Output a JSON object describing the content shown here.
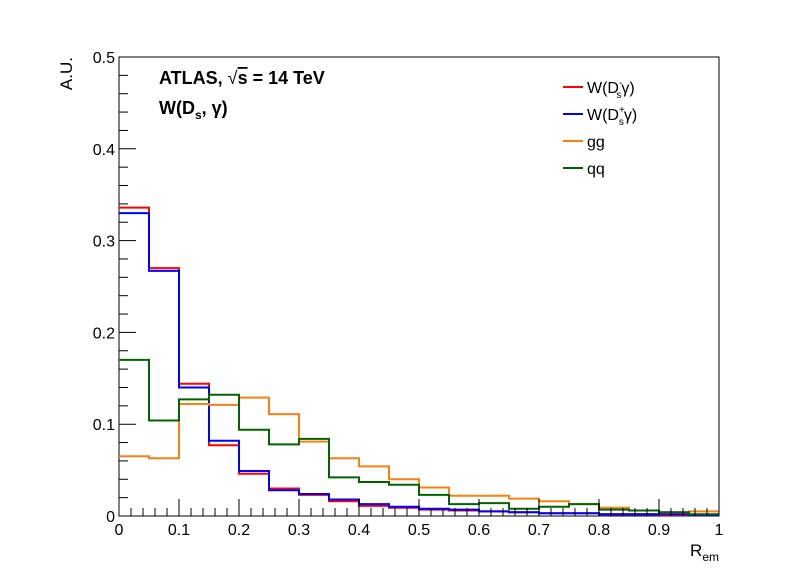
{
  "chart_data": {
    "type": "line",
    "style": "step-histogram",
    "x_bin_edges": [
      0,
      0.05,
      0.1,
      0.15,
      0.2,
      0.25,
      0.3,
      0.35,
      0.4,
      0.45,
      0.5,
      0.55,
      0.6,
      0.65,
      0.7,
      0.75,
      0.8,
      0.85,
      0.9,
      0.95,
      1.0
    ],
    "xlabel": "R",
    "xlabel_sub": "em",
    "ylabel": "A.U.",
    "xlim": [
      0,
      1
    ],
    "ylim": [
      0,
      0.5
    ],
    "x_ticks": [
      "0",
      "0.1",
      "0.2",
      "0.3",
      "0.4",
      "0.5",
      "0.6",
      "0.7",
      "0.8",
      "0.9",
      "1"
    ],
    "y_ticks": [
      "0",
      "0.1",
      "0.2",
      "0.3",
      "0.4",
      "0.5"
    ],
    "grid": false,
    "legend_position": "top-right",
    "annotation": {
      "line1_prefix": "ATLAS,",
      "line1_sqrt": "√",
      "line1_s": "s",
      "line1_suffix": "= 14 TeV",
      "line2_main": "W(D",
      "line2_sub": "s",
      "line2_end": ", γ)"
    },
    "series": [
      {
        "name": "W(D⁻ₛγ)",
        "legend_base": "W(D",
        "legend_sup": "-",
        "legend_sub": "s",
        "legend_end": "γ)",
        "color": "#ff0000",
        "values": [
          0.336,
          0.27,
          0.144,
          0.077,
          0.046,
          0.03,
          0.023,
          0.016,
          0.011,
          0.009,
          0.007,
          0.006,
          0.005,
          0.004,
          0.003,
          0.003,
          0.002,
          0.002,
          0.001,
          0.001
        ]
      },
      {
        "name": "W(D⁺ₛγ)",
        "legend_base": "W(D",
        "legend_sup": "+",
        "legend_sub": "s",
        "legend_end": "γ)",
        "color": "#0000ff",
        "values": [
          0.33,
          0.267,
          0.14,
          0.082,
          0.049,
          0.028,
          0.024,
          0.018,
          0.013,
          0.01,
          0.008,
          0.007,
          0.005,
          0.004,
          0.003,
          0.003,
          0.002,
          0.002,
          0.002,
          0.001
        ]
      },
      {
        "name": "gg",
        "legend_base": "gg",
        "legend_sup": "",
        "legend_sub": "",
        "legend_end": "",
        "color": "#ff7f0e",
        "values": [
          0.065,
          0.063,
          0.122,
          0.121,
          0.129,
          0.111,
          0.081,
          0.063,
          0.054,
          0.04,
          0.031,
          0.022,
          0.022,
          0.019,
          0.016,
          0.013,
          0.009,
          0.006,
          0.004,
          0.005
        ]
      },
      {
        "name": "qq",
        "legend_base": "qq",
        "legend_sup": "",
        "legend_sub": "",
        "legend_end": "",
        "color": "#006400",
        "values": [
          0.17,
          0.104,
          0.127,
          0.132,
          0.094,
          0.078,
          0.084,
          0.042,
          0.037,
          0.034,
          0.023,
          0.013,
          0.014,
          0.008,
          0.01,
          0.013,
          0.007,
          0.006,
          0.004,
          0.002
        ]
      }
    ]
  }
}
